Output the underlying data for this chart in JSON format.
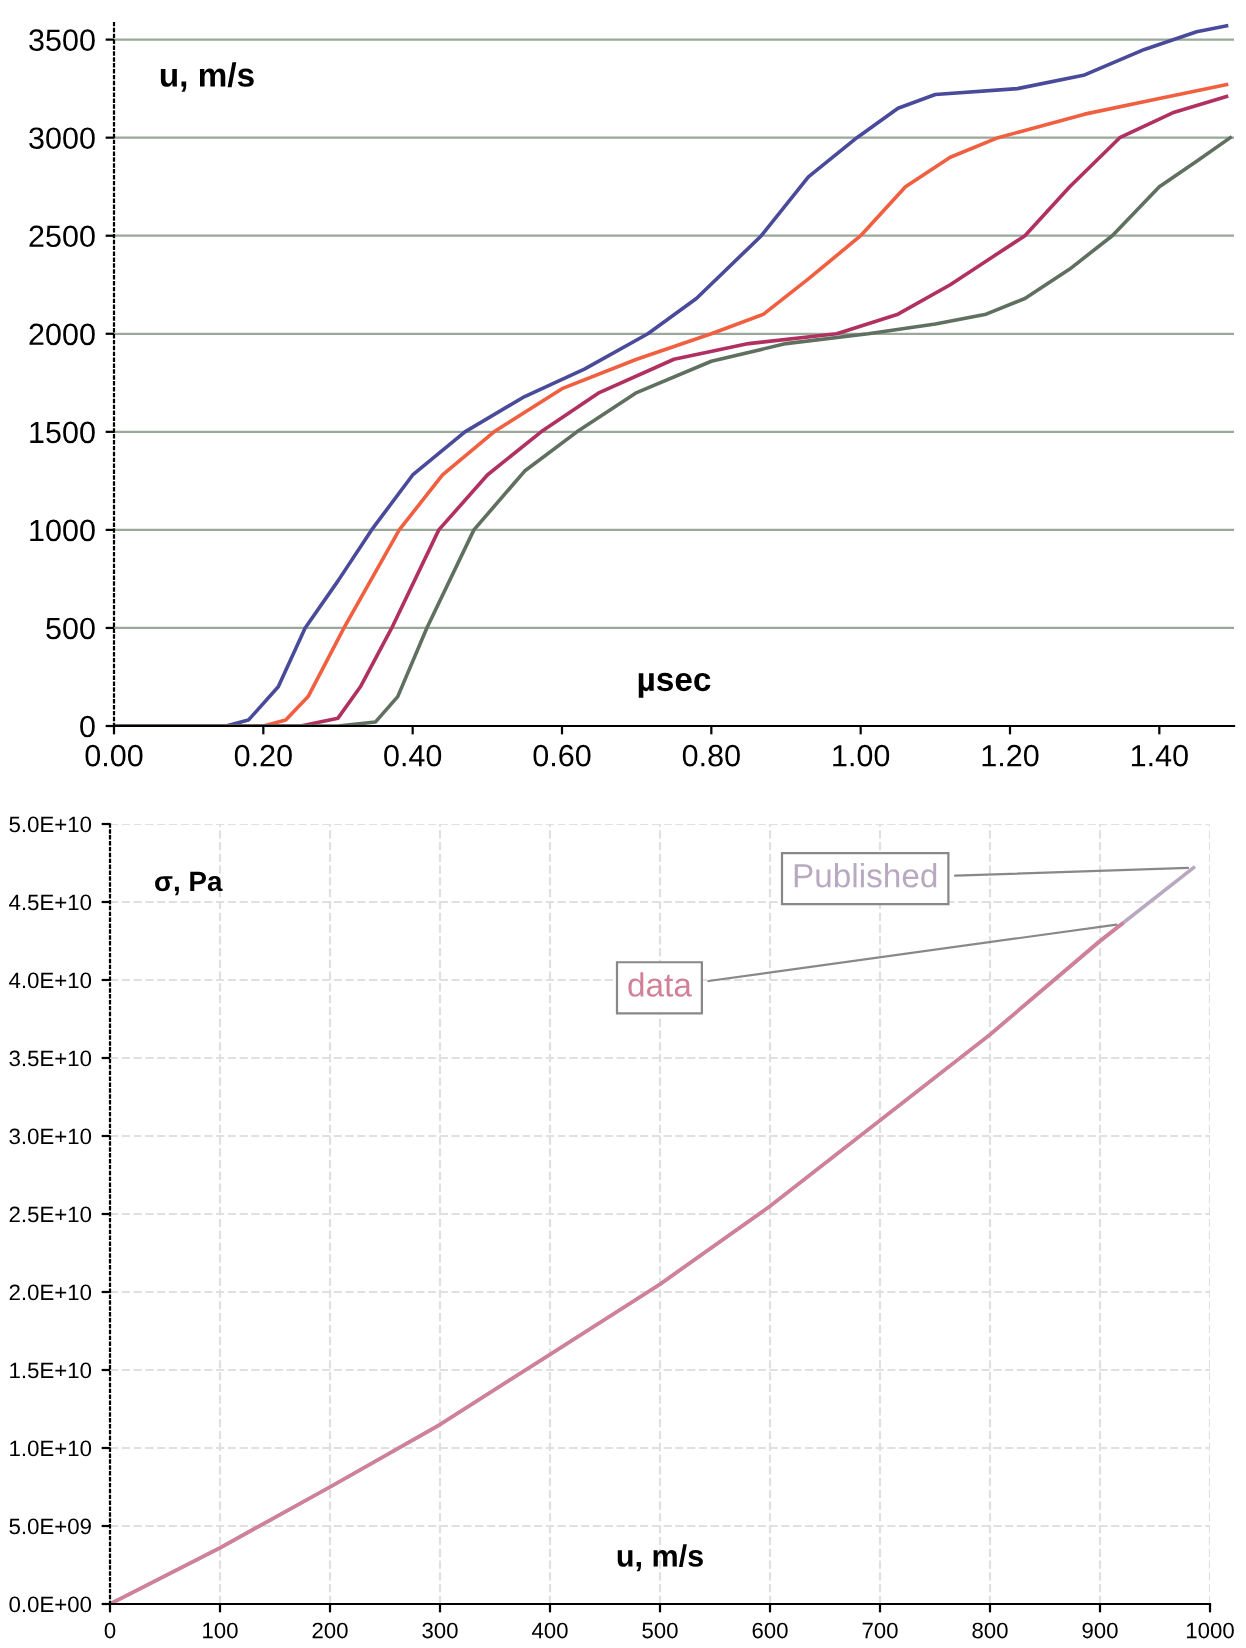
{
  "chart_data": [
    {
      "type": "line",
      "xlabel": "µsec",
      "ylabel": "u, m/s",
      "xlim": [
        0,
        1.5
      ],
      "ylim": [
        0,
        3600
      ],
      "xticks": [
        {
          "value": 0,
          "label": "0.00"
        },
        {
          "value": 0.2,
          "label": "0.20"
        },
        {
          "value": 0.4,
          "label": "0.40"
        },
        {
          "value": 0.6,
          "label": "0.60"
        },
        {
          "value": 0.8,
          "label": "0.80"
        },
        {
          "value": 1.0,
          "label": "1.00"
        },
        {
          "value": 1.2,
          "label": "1.20"
        },
        {
          "value": 1.4,
          "label": "1.40"
        }
      ],
      "yticks": [
        0,
        500,
        1000,
        1500,
        2000,
        2500,
        3000,
        3500
      ],
      "grid": "y",
      "legend": false,
      "marker": "none",
      "line_style": "solid",
      "series": [
        {
          "color": "#4a4a9a",
          "x": [
            0,
            0.15,
            0.18,
            0.22,
            0.256,
            0.3,
            0.345,
            0.4,
            0.47,
            0.55,
            0.63,
            0.715,
            0.78,
            0.867,
            0.93,
            0.995,
            1.05,
            1.1,
            1.21,
            1.3,
            1.38,
            1.45,
            1.49
          ],
          "values": [
            0,
            0,
            30,
            200,
            500,
            740,
            1000,
            1280,
            1500,
            1680,
            1820,
            2000,
            2180,
            2500,
            2800,
            3000,
            3150,
            3220,
            3250,
            3320,
            3450,
            3540,
            3570
          ]
        },
        {
          "color": "#f06040",
          "x": [
            0,
            0.2,
            0.23,
            0.26,
            0.308,
            0.382,
            0.44,
            0.509,
            0.6,
            0.7,
            0.8,
            0.87,
            0.93,
            1.0,
            1.06,
            1.12,
            1.184,
            1.3,
            1.4,
            1.49
          ],
          "values": [
            0,
            0,
            30,
            150,
            500,
            1000,
            1280,
            1500,
            1720,
            1870,
            2000,
            2100,
            2280,
            2500,
            2750,
            2900,
            3000,
            3120,
            3200,
            3270
          ]
        },
        {
          "color": "#b03060",
          "x": [
            0,
            0.25,
            0.3,
            0.33,
            0.372,
            0.435,
            0.5,
            0.572,
            0.65,
            0.75,
            0.85,
            0.968,
            1.05,
            1.12,
            1.18,
            1.22,
            1.28,
            1.347,
            1.42,
            1.49
          ],
          "values": [
            0,
            0,
            40,
            200,
            500,
            1000,
            1280,
            1500,
            1700,
            1870,
            1950,
            2000,
            2100,
            2250,
            2400,
            2500,
            2750,
            3000,
            3130,
            3210
          ]
        },
        {
          "color": "#607060",
          "x": [
            0,
            0.3,
            0.35,
            0.38,
            0.419,
            0.482,
            0.55,
            0.62,
            0.7,
            0.8,
            0.9,
            1.01,
            1.1,
            1.168,
            1.22,
            1.28,
            1.337,
            1.4,
            1.45,
            1.495
          ],
          "values": [
            0,
            0,
            20,
            150,
            500,
            1000,
            1300,
            1500,
            1700,
            1860,
            1950,
            2000,
            2050,
            2100,
            2180,
            2330,
            2500,
            2750,
            2880,
            3000
          ]
        }
      ]
    },
    {
      "type": "line",
      "xlabel": "u, m/s",
      "ylabel": "σ, Pa",
      "xlim": [
        0,
        1000
      ],
      "ylim": [
        0,
        50000000000.0
      ],
      "xticks": [
        0,
        100,
        200,
        300,
        400,
        500,
        600,
        700,
        800,
        900,
        1000
      ],
      "yticks": [
        {
          "value": 0,
          "label": "0.0E+00"
        },
        {
          "value": 5000000000.0,
          "label": "5.0E+09"
        },
        {
          "value": 10000000000.0,
          "label": "1.0E+10"
        },
        {
          "value": 15000000000.0,
          "label": "1.5E+10"
        },
        {
          "value": 20000000000.0,
          "label": "2.0E+10"
        },
        {
          "value": 25000000000.0,
          "label": "2.5E+10"
        },
        {
          "value": 30000000000.0,
          "label": "3.0E+10"
        },
        {
          "value": 35000000000.0,
          "label": "3.5E+10"
        },
        {
          "value": 40000000000.0,
          "label": "4.0E+10"
        },
        {
          "value": 45000000000.0,
          "label": "4.5E+10"
        },
        {
          "value": 50000000000.0,
          "label": "5.0E+10"
        }
      ],
      "grid": true,
      "legend": false,
      "marker": "none",
      "line_style": "solid",
      "series": [
        {
          "name": "Published",
          "color": "#b8a8c0",
          "x": [
            0,
            100,
            200,
            300,
            400,
            500,
            600,
            700,
            800,
            900,
            985
          ],
          "values": [
            0,
            3600000000.0,
            7500000000.0,
            11500000000.0,
            16000000000.0,
            20500000000.0,
            25500000000.0,
            31000000000.0,
            36500000000.0,
            42500000000.0,
            47200000000.0
          ]
        },
        {
          "name": "data",
          "color": "#d08098",
          "x": [
            0,
            100,
            200,
            300,
            400,
            500,
            600,
            700,
            800,
            900,
            920
          ],
          "values": [
            0,
            3600000000.0,
            7500000000.0,
            11500000000.0,
            16000000000.0,
            20500000000.0,
            25500000000.0,
            31000000000.0,
            36500000000.0,
            42500000000.0,
            43600000000.0
          ]
        }
      ]
    }
  ]
}
